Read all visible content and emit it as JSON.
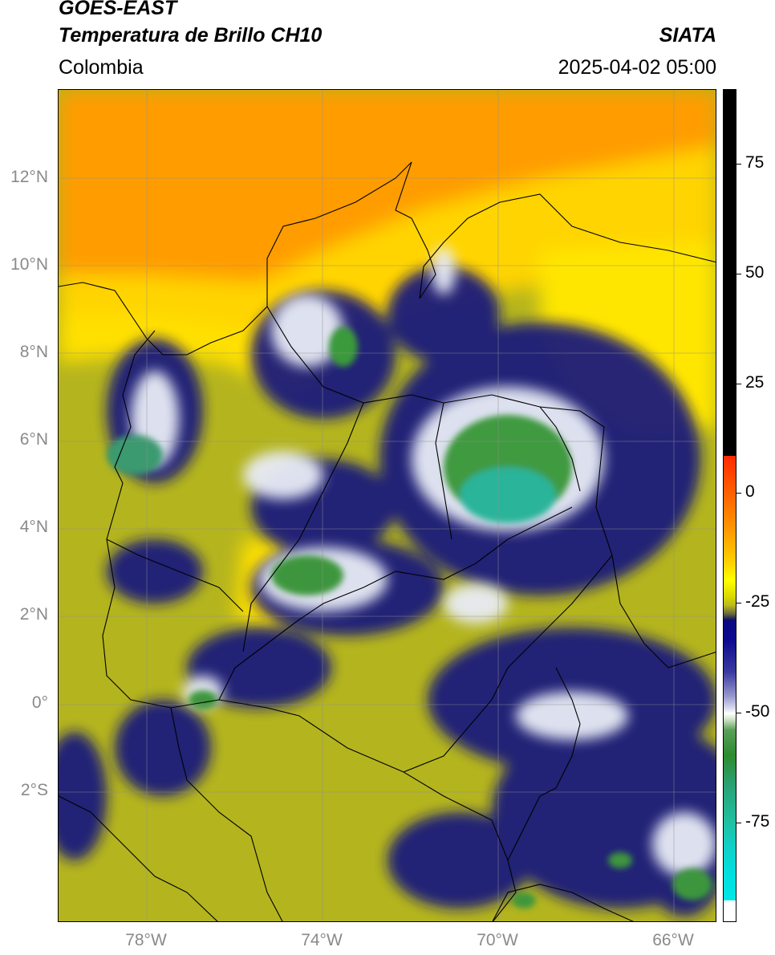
{
  "header": {
    "title_line1": "GOES-EAST",
    "title_line2": "Temperatura de Brillo CH10",
    "brand": "SIATA",
    "region": "Colombia",
    "datetime": "2025-04-02 05:00"
  },
  "map": {
    "lat_labels": [
      "12°N",
      "10°N",
      "8°N",
      "6°N",
      "4°N",
      "2°N",
      "0°",
      "2°S"
    ],
    "lon_labels": [
      "78°W",
      "74°W",
      "70°W",
      "66°W"
    ]
  },
  "colorbar": {
    "labels": [
      "75",
      "50",
      "25",
      "0",
      "-25",
      "-50",
      "-75"
    ],
    "colors": [
      "#000000",
      "#ff2a00",
      "#ff9900",
      "#ffff00",
      "#b9b91f",
      "#0a0a80",
      "#ffffff",
      "#2e8b2e",
      "#20c0a0",
      "#00e0e0"
    ]
  }
}
